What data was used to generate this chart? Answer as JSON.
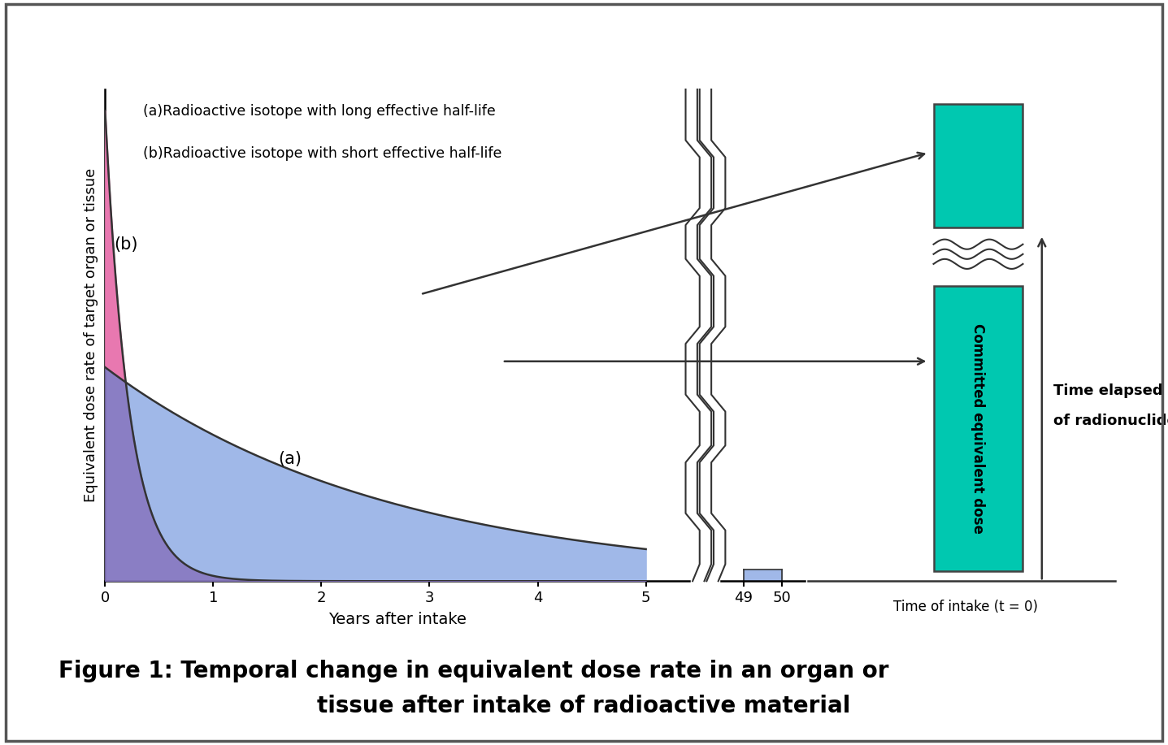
{
  "bg_color": "#ffffff",
  "curve_a_color": "#a0b8e8",
  "curve_b_color": "#e878b0",
  "overlap_color": "#8878c0",
  "teal_color": "#00c8b0",
  "teal_edge_color": "#444444",
  "small_bar_color": "#a0b8e8",
  "label_a": "(a)Radioactive isotope with long effective half-life",
  "label_b": "(b)Radioactive isotope with short effective half-life",
  "ylabel": "Equivalent dose rate of target organ or tissue",
  "xlabel": "Years after intake",
  "xlabel2_line1": "Time elapsed after intake",
  "xlabel2_line2": "of radionuclide (t)",
  "time_of_intake": "Time of intake (t = 0)",
  "committed_label": "Committed equivalent dose",
  "curve_a_label": "(a)",
  "curve_b_label": "(b)",
  "figure_caption_line1": "Figure 1: Temporal change in equivalent dose rate in an organ or",
  "figure_caption_line2": "tissue after intake of radioactive material",
  "xticks_main": [
    0,
    1,
    2,
    3,
    4,
    5
  ],
  "decay_a": 0.38,
  "decay_b": 4.5,
  "peak_b_factor": 2.2,
  "peak_a": 1.0
}
